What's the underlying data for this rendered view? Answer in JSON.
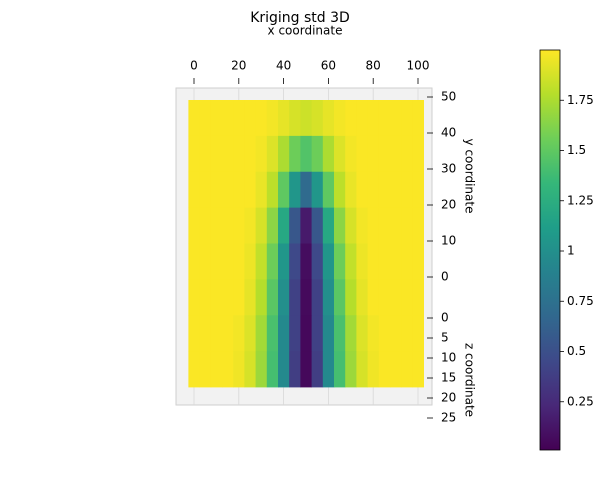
{
  "chart_data": {
    "type": "heatmap",
    "title": "Kriging std 3D",
    "xlabel": "x coordinate",
    "ylabel": "y coordinate",
    "zlabel": "z coordinate",
    "colormap": "viridis",
    "x": [
      0,
      5,
      10,
      15,
      20,
      25,
      30,
      35,
      40,
      45,
      50,
      55,
      60,
      65,
      70,
      75,
      80,
      85,
      90,
      95,
      100
    ],
    "values": [
      [
        1.99,
        1.99,
        1.99,
        1.99,
        1.99,
        1.99,
        1.99,
        1.97,
        1.93,
        1.88,
        1.85,
        1.88,
        1.93,
        1.97,
        1.99,
        1.99,
        1.99,
        1.99,
        1.99,
        1.99,
        1.99
      ],
      [
        1.99,
        1.99,
        1.99,
        1.99,
        1.99,
        1.99,
        1.97,
        1.9,
        1.75,
        1.55,
        1.45,
        1.55,
        1.75,
        1.9,
        1.97,
        1.99,
        1.99,
        1.99,
        1.99,
        1.99,
        1.99
      ],
      [
        1.99,
        1.99,
        1.99,
        1.99,
        1.99,
        1.99,
        1.94,
        1.8,
        1.5,
        1.05,
        0.7,
        1.05,
        1.5,
        1.8,
        1.94,
        1.99,
        1.99,
        1.99,
        1.99,
        1.99,
        1.99
      ],
      [
        1.99,
        1.99,
        1.99,
        1.99,
        1.99,
        1.97,
        1.88,
        1.65,
        1.2,
        0.55,
        0.15,
        0.55,
        1.2,
        1.65,
        1.88,
        1.97,
        1.99,
        1.99,
        1.99,
        1.99,
        1.99
      ],
      [
        1.99,
        1.99,
        1.99,
        1.99,
        1.99,
        1.95,
        1.82,
        1.55,
        1.05,
        0.45,
        0.08,
        0.45,
        1.05,
        1.55,
        1.82,
        1.95,
        1.99,
        1.99,
        1.99,
        1.99,
        1.99
      ],
      [
        1.99,
        1.99,
        1.99,
        1.99,
        1.99,
        1.93,
        1.78,
        1.48,
        1.0,
        0.4,
        0.06,
        0.4,
        1.0,
        1.48,
        1.78,
        1.93,
        1.99,
        1.99,
        1.99,
        1.99,
        1.99
      ],
      [
        1.99,
        1.99,
        1.99,
        1.99,
        1.97,
        1.9,
        1.72,
        1.42,
        0.95,
        0.4,
        0.05,
        0.4,
        0.95,
        1.42,
        1.72,
        1.9,
        1.97,
        1.99,
        1.99,
        1.99,
        1.99
      ],
      [
        1.99,
        1.99,
        1.99,
        1.99,
        1.96,
        1.88,
        1.7,
        1.4,
        0.95,
        0.38,
        0.05,
        0.38,
        0.95,
        1.4,
        1.7,
        1.88,
        1.96,
        1.99,
        1.99,
        1.99,
        1.99
      ]
    ],
    "xlim": [
      0,
      100
    ],
    "xticks": [
      0,
      20,
      40,
      60,
      80,
      100
    ],
    "ylim": [
      0,
      50
    ],
    "yticks": [
      0,
      10,
      20,
      30,
      40,
      50
    ],
    "zlim": [
      0,
      25
    ],
    "zticks": [
      0,
      5,
      10,
      15,
      20,
      25
    ],
    "clim": [
      0.01,
      2.0
    ],
    "cticks": [
      0.25,
      0.5,
      0.75,
      1.0,
      1.25,
      1.5,
      1.75
    ],
    "grid": true
  }
}
